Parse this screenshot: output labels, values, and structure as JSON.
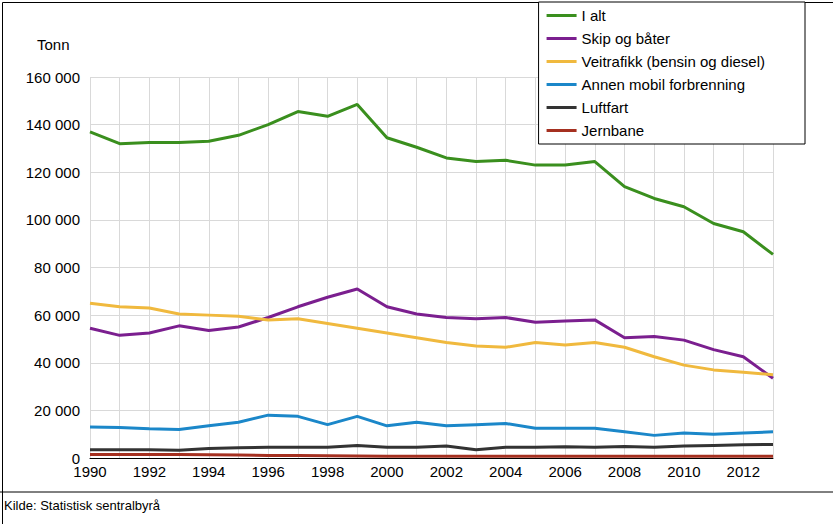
{
  "chart_data": {
    "type": "line",
    "ylabel": "Tonn",
    "source": "Kilde: Statistisk sentralbyrå",
    "categories": [
      "1990",
      null,
      "1992",
      null,
      "1994",
      null,
      "1996",
      null,
      "1998",
      null,
      "2000",
      null,
      "2002",
      null,
      "2004",
      null,
      "2006",
      null,
      "2008",
      null,
      "2010",
      null,
      "2012",
      null
    ],
    "series": [
      {
        "name": "I alt",
        "color": "#3a8f1e",
        "values": [
          137000,
          132000,
          132500,
          132500,
          133000,
          135500,
          140000,
          145500,
          143500,
          148500,
          134500,
          130500,
          126000,
          124500,
          125000,
          123000,
          123000,
          124500,
          114000,
          109000,
          105500,
          98500,
          95000,
          85500
        ]
      },
      {
        "name": "Skip og båter",
        "color": "#7b1f8f",
        "values": [
          54500,
          51500,
          52500,
          55500,
          53500,
          55000,
          59000,
          63500,
          67500,
          71000,
          63500,
          60500,
          59000,
          58500,
          59000,
          57000,
          57500,
          58000,
          50500,
          51000,
          49500,
          45500,
          42500,
          33500
        ]
      },
      {
        "name": "Veitrafikk (bensin og diesel)",
        "color": "#f0b93e",
        "values": [
          65000,
          63500,
          63000,
          60500,
          60000,
          59500,
          58000,
          58500,
          56500,
          54500,
          52500,
          50500,
          48500,
          47000,
          46500,
          48500,
          47500,
          48500,
          46500,
          42500,
          39000,
          37000,
          36000,
          35000
        ]
      },
      {
        "name": "Annen mobil forbrenning",
        "color": "#1b87c9",
        "values": [
          13000,
          12800,
          12300,
          12000,
          13500,
          15000,
          18000,
          17500,
          14000,
          17500,
          13500,
          15000,
          13500,
          14000,
          14500,
          12500,
          12500,
          12500,
          11000,
          9500,
          10500,
          10000,
          10500,
          11000
        ]
      },
      {
        "name": "Luftfart",
        "color": "#333333",
        "values": [
          3500,
          3500,
          3500,
          3300,
          4000,
          4300,
          4500,
          4500,
          4500,
          5300,
          4500,
          4500,
          5000,
          3500,
          4500,
          4500,
          4700,
          4500,
          4800,
          4500,
          5000,
          5300,
          5600,
          5700
        ]
      },
      {
        "name": "Jernbane",
        "color": "#a53020",
        "values": [
          1500,
          1500,
          1500,
          1500,
          1400,
          1300,
          1000,
          1000,
          900,
          800,
          700,
          700,
          700,
          700,
          700,
          700,
          700,
          700,
          700,
          700,
          700,
          700,
          700,
          700
        ]
      }
    ],
    "ylim": [
      0,
      160000
    ],
    "yticks": [
      0,
      {
        "value": 20000,
        "label": "20 000"
      },
      {
        "value": 40000,
        "label": "40 000"
      },
      {
        "value": 60000,
        "label": "60 000"
      },
      {
        "value": 80000,
        "label": "80 000"
      },
      {
        "value": 100000,
        "label": "100 000"
      },
      {
        "value": 120000,
        "label": "120 000"
      },
      {
        "value": 140000,
        "label": "140 000"
      },
      {
        "value": 160000,
        "label": "160 000"
      }
    ],
    "grid": true,
    "legend": "upper right"
  }
}
